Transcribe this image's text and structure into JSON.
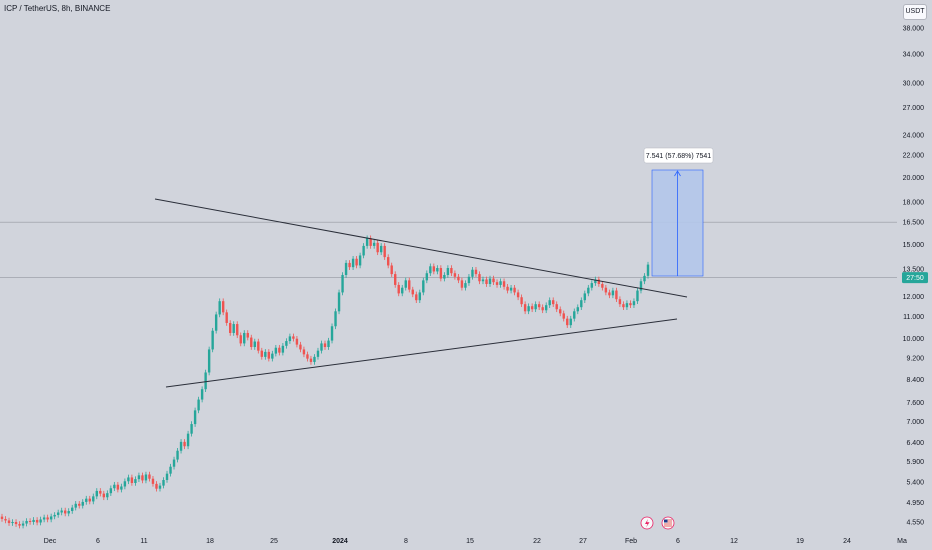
{
  "header": {
    "symbol_title": "ICP / TetherUS, 8h, BINANCE",
    "currency": "USDT"
  },
  "chart_data": {
    "type": "candlestick",
    "title": "ICP / TetherUS, 8h, BINANCE",
    "y_scale": "log",
    "y_ticks": [
      "38.000",
      "34.000",
      "30.000",
      "27.000",
      "24.000",
      "22.000",
      "20.000",
      "18.000",
      "16.500",
      "15.000",
      "13.500",
      "12.000",
      "11.000",
      "10.000",
      "9.200",
      "8.400",
      "7.600",
      "7.000",
      "6.400",
      "5.900",
      "5.400",
      "4.950",
      "4.550"
    ],
    "x_ticks": [
      "Dec",
      "6",
      "11",
      "18",
      "25",
      "2024",
      "8",
      "15",
      "22",
      "27",
      "Feb",
      "6",
      "12",
      "19",
      "24",
      "Ma"
    ],
    "current_price_label": "27:50",
    "measure_label": "7.541 (57.68%) 7541",
    "closes": [
      4.61,
      4.58,
      4.53,
      4.55,
      4.51,
      4.48,
      4.52,
      4.57,
      4.55,
      4.59,
      4.54,
      4.6,
      4.64,
      4.6,
      4.66,
      4.69,
      4.74,
      4.78,
      4.72,
      4.77,
      4.84,
      4.92,
      4.88,
      4.96,
      5.03,
      4.97,
      5.08,
      5.2,
      5.14,
      5.06,
      5.15,
      5.26,
      5.34,
      5.23,
      5.3,
      5.42,
      5.51,
      5.38,
      5.47,
      5.56,
      5.44,
      5.58,
      5.48,
      5.36,
      5.25,
      5.32,
      5.45,
      5.6,
      5.77,
      5.95,
      6.18,
      6.42,
      6.3,
      6.65,
      6.93,
      7.35,
      7.7,
      8.05,
      8.65,
      9.55,
      10.35,
      11.1,
      11.75,
      11.2,
      10.7,
      10.25,
      10.65,
      10.15,
      9.8,
      10.25,
      10.05,
      9.65,
      9.88,
      9.5,
      9.25,
      9.45,
      9.18,
      9.38,
      9.62,
      9.42,
      9.7,
      9.9,
      10.1,
      10.0,
      9.75,
      9.55,
      9.35,
      9.18,
      9.05,
      9.25,
      9.5,
      9.8,
      9.65,
      9.92,
      10.55,
      11.25,
      12.2,
      13.15,
      13.85,
      13.6,
      14.1,
      13.7,
      14.3,
      14.9,
      15.4,
      14.9,
      15.1,
      14.5,
      14.9,
      14.2,
      13.7,
      13.2,
      12.6,
      12.15,
      12.45,
      12.85,
      12.35,
      12.1,
      11.8,
      12.2,
      12.85,
      13.25,
      13.65,
      13.35,
      13.55,
      12.95,
      13.15,
      13.55,
      13.25,
      13.05,
      12.85,
      12.45,
      12.7,
      13.05,
      13.45,
      13.2,
      12.8,
      12.9,
      12.65,
      12.95,
      12.75,
      12.6,
      12.8,
      12.5,
      12.3,
      12.45,
      12.2,
      11.95,
      11.6,
      11.25,
      11.5,
      11.35,
      11.6,
      11.45,
      11.3,
      11.55,
      11.8,
      11.6,
      11.35,
      11.15,
      10.9,
      10.6,
      10.9,
      11.25,
      11.45,
      11.8,
      12.15,
      12.45,
      12.7,
      12.9,
      12.65,
      12.45,
      12.2,
      12.05,
      12.3,
      11.85,
      11.6,
      11.45,
      11.65,
      11.55,
      11.75,
      12.3,
      12.8,
      13.1,
      13.75
    ],
    "overlays": {
      "resistance_line": "descending trendline",
      "support_line": "ascending trendline",
      "measure_box": "long position target"
    }
  },
  "colors": {
    "background": "#d1d4dc",
    "up": "#26a69a",
    "down": "#ef5350",
    "trendline": "#2a2e39",
    "measure_fill": "#b3c6ea",
    "measure_line": "#2962ff",
    "price_label": "#26a69a"
  }
}
